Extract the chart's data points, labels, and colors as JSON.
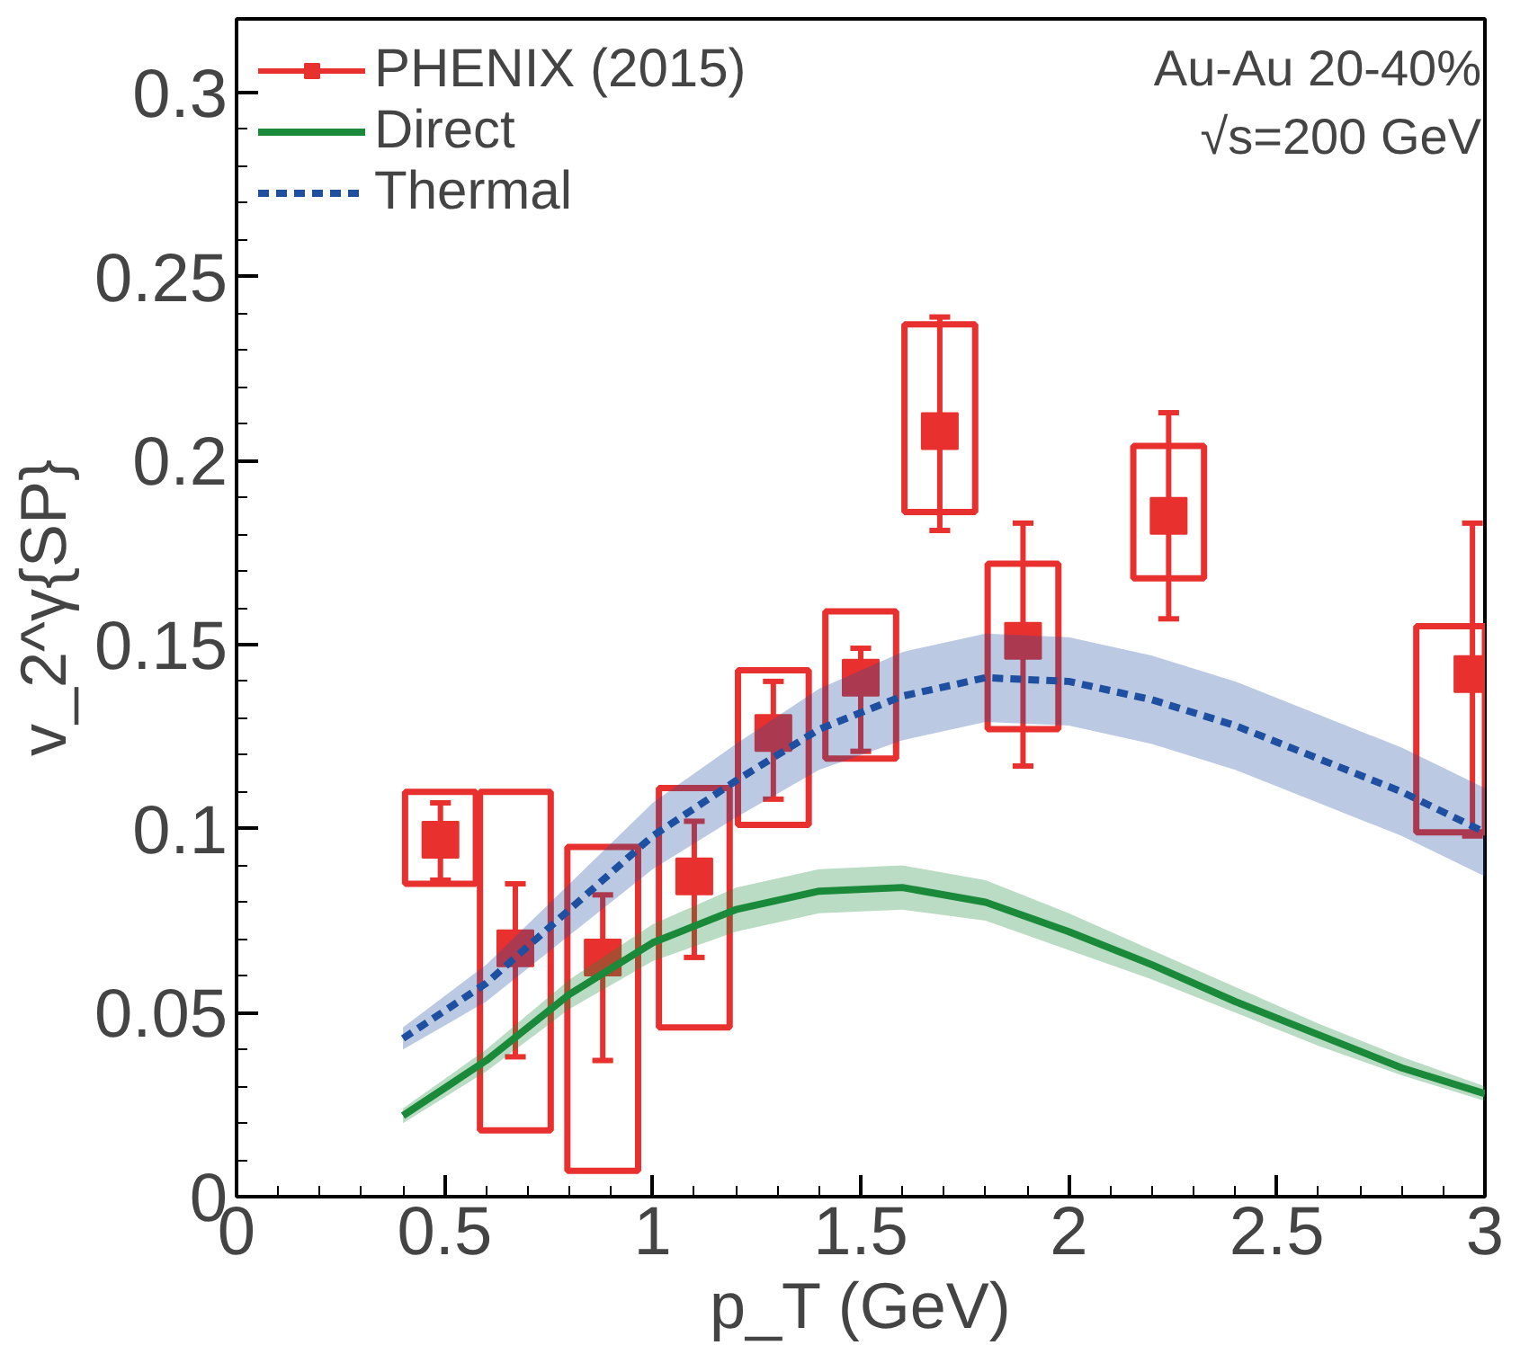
{
  "chart_data": {
    "type": "scatter",
    "xlabel": "p_T (GeV)",
    "ylabel": "v_2^γ{SP}",
    "xlim": [
      0,
      3
    ],
    "ylim": [
      0,
      0.32
    ],
    "xticks": [
      0,
      0.5,
      1,
      1.5,
      2,
      2.5,
      3
    ],
    "yticks": [
      0,
      0.05,
      0.1,
      0.15,
      0.2,
      0.25,
      0.3
    ],
    "grid": false,
    "legend": "top left",
    "annotations": [
      "Au-Au 20-40%",
      "√s=200 GeV"
    ],
    "series": [
      {
        "name": "PHENIX (2015)",
        "marker": "square",
        "color": "#e8312f",
        "x": [
          0.49,
          0.67,
          0.88,
          1.1,
          1.29,
          1.5,
          1.69,
          1.89,
          2.24,
          2.97
        ],
        "values": [
          0.097,
          0.0675,
          0.065,
          0.087,
          0.126,
          0.141,
          0.208,
          0.151,
          0.185,
          0.142
        ],
        "errors": [
          [
            0.086,
            0.107
          ],
          [
            0.038,
            0.085
          ],
          [
            0.037,
            0.082
          ],
          [
            0.065,
            0.102
          ],
          [
            0.108,
            0.14
          ],
          [
            0.121,
            0.149
          ],
          [
            0.181,
            0.239
          ],
          [
            0.117,
            0.183
          ],
          [
            0.157,
            0.213
          ],
          [
            0.098,
            0.183
          ]
        ]
      },
      {
        "type": "bar",
        "color": "#e8312f",
        "x": [
          0.49,
          0.67,
          0.88,
          1.1,
          1.29,
          1.5,
          1.69,
          1.89,
          2.24,
          2.92
        ],
        "base": [
          0.085,
          0.018,
          0.007,
          0.046,
          0.101,
          0.119,
          0.186,
          0.127,
          0.168,
          0.099
        ],
        "values": [
          0.025,
          0.092,
          0.088,
          0.065,
          0.042,
          0.04,
          0.051,
          0.045,
          0.036,
          0.056
        ]
      },
      {
        "name": "Direct",
        "type": "line",
        "line_style": "solid",
        "color": "#1a8a3a",
        "x": [
          0.4,
          0.6,
          0.8,
          1.0,
          1.2,
          1.4,
          1.6,
          1.8,
          2.0,
          2.2,
          2.4,
          2.6,
          2.8,
          3.0
        ],
        "values": [
          0.022,
          0.037,
          0.055,
          0.069,
          0.078,
          0.083,
          0.084,
          0.08,
          0.072,
          0.063,
          0.053,
          0.044,
          0.035,
          0.028
        ],
        "lower": [
          0.02,
          0.034,
          0.051,
          0.064,
          0.072,
          0.077,
          0.078,
          0.075,
          0.067,
          0.059,
          0.05,
          0.041,
          0.033,
          0.026
        ],
        "upper": [
          0.024,
          0.04,
          0.059,
          0.074,
          0.084,
          0.089,
          0.09,
          0.086,
          0.077,
          0.067,
          0.057,
          0.047,
          0.038,
          0.03
        ]
      },
      {
        "name": "Thermal",
        "type": "line",
        "line_style": "dashed",
        "color": "#1f4fa0",
        "x": [
          0.4,
          0.6,
          0.8,
          1.0,
          1.2,
          1.4,
          1.6,
          1.8,
          2.0,
          2.2,
          2.4,
          2.6,
          2.8,
          3.0
        ],
        "values": [
          0.043,
          0.058,
          0.078,
          0.098,
          0.113,
          0.127,
          0.136,
          0.141,
          0.14,
          0.135,
          0.128,
          0.119,
          0.11,
          0.099
        ],
        "lower": [
          0.04,
          0.053,
          0.071,
          0.089,
          0.103,
          0.116,
          0.124,
          0.129,
          0.128,
          0.123,
          0.116,
          0.107,
          0.098,
          0.087
        ],
        "upper": [
          0.046,
          0.063,
          0.085,
          0.107,
          0.123,
          0.138,
          0.148,
          0.153,
          0.152,
          0.147,
          0.14,
          0.131,
          0.122,
          0.111
        ]
      }
    ]
  }
}
